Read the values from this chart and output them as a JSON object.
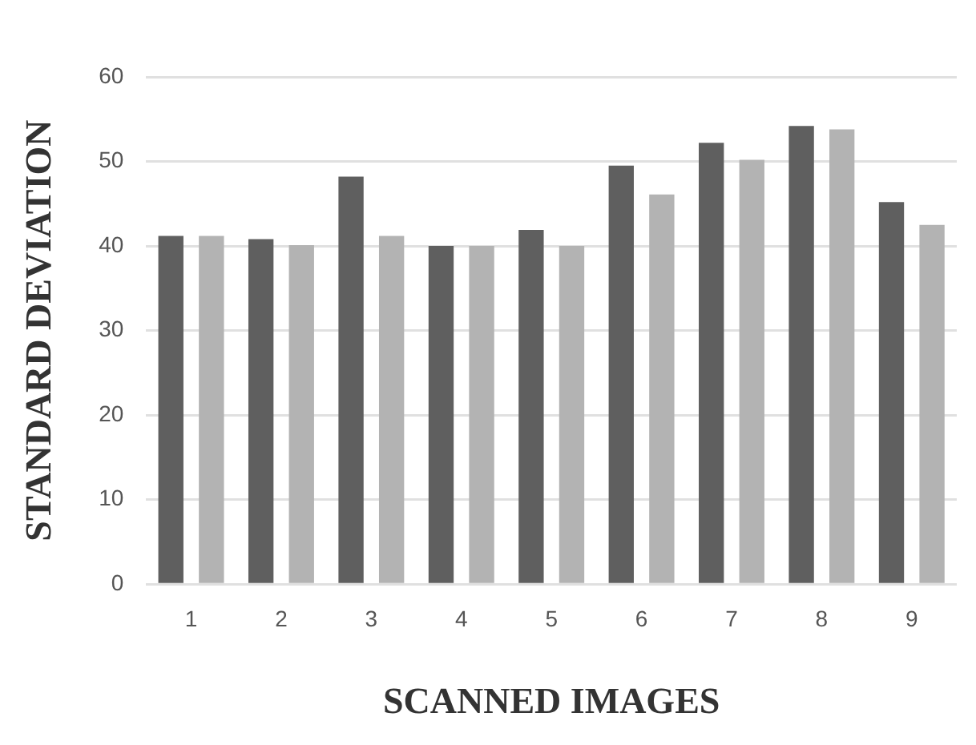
{
  "chart_data": {
    "type": "bar",
    "xlabel": "SCANNED IMAGES",
    "ylabel": "STANDARD DEVIATION",
    "categories": [
      "1",
      "2",
      "3",
      "4",
      "5",
      "6",
      "7",
      "8",
      "9"
    ],
    "series": [
      {
        "color": "#5f5f5f",
        "values": [
          41.2,
          40.8,
          48.2,
          40,
          41.9,
          49.5,
          52.2,
          54.2,
          45.2
        ]
      },
      {
        "color": "#b3b3b3",
        "values": [
          41.2,
          40.1,
          41.2,
          40,
          40,
          46.1,
          50.2,
          53.8,
          42.5
        ]
      }
    ],
    "ylim": [
      0,
      60
    ],
    "yticks": [
      0,
      10,
      20,
      30,
      40,
      50,
      60
    ],
    "grid": "y",
    "legend": false
  }
}
